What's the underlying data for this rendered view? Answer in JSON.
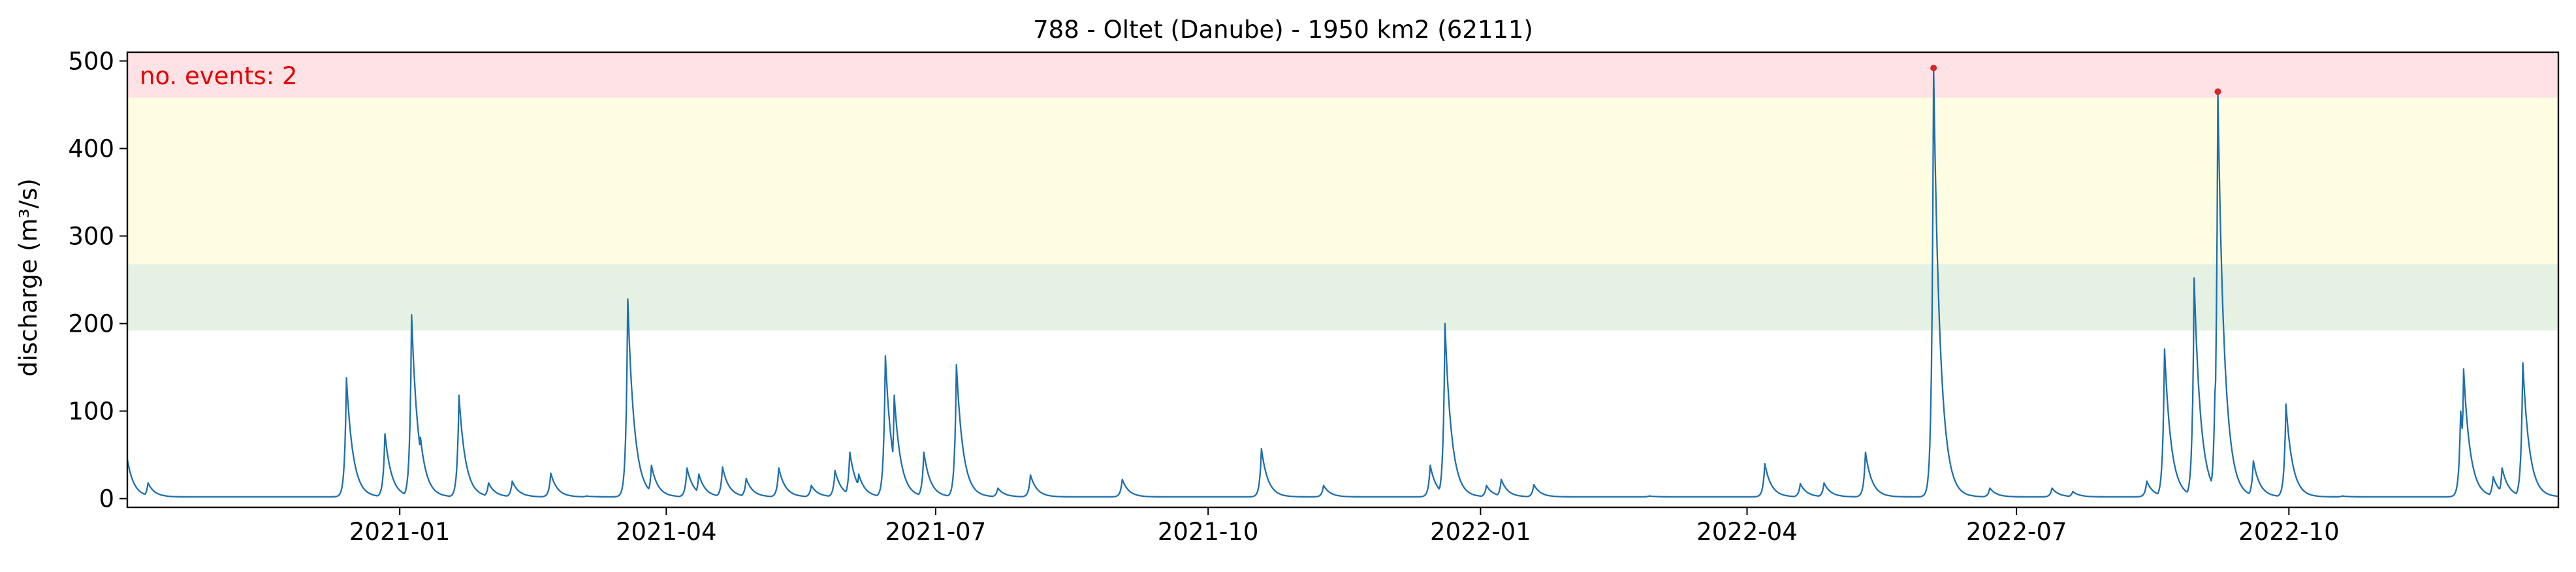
{
  "chart_data": {
    "type": "line",
    "title": "788 - Oltet (Danube) - 1950 km2 (62111)",
    "xlabel": "",
    "ylabel": "discharge (m³/s)",
    "xlim": [
      "2020-10-01",
      "2022-12-31"
    ],
    "ylim": [
      -10,
      510
    ],
    "x_ticks": [
      {
        "date": "2021-01-01",
        "label": "2021-01"
      },
      {
        "date": "2021-04-01",
        "label": "2021-04"
      },
      {
        "date": "2021-07-01",
        "label": "2021-07"
      },
      {
        "date": "2021-10-01",
        "label": "2021-10"
      },
      {
        "date": "2022-01-01",
        "label": "2022-01"
      },
      {
        "date": "2022-04-01",
        "label": "2022-04"
      },
      {
        "date": "2022-07-01",
        "label": "2022-07"
      },
      {
        "date": "2022-10-01",
        "label": "2022-10"
      }
    ],
    "y_ticks": [
      0,
      100,
      200,
      300,
      400,
      500
    ],
    "grid": false,
    "threshold_bands": [
      {
        "from": 192,
        "to": 268,
        "color": "#e5f1e3"
      },
      {
        "from": 268,
        "to": 458,
        "color": "#fffde1"
      },
      {
        "from": 458,
        "to": 510,
        "color": "#fee2e5"
      }
    ],
    "annotation": {
      "text": "no. events: 2",
      "color": "#e60000",
      "position": "top-left"
    },
    "series": [
      {
        "color": "#1f6fad",
        "peaks": [
          [
            "2020-10-01",
            45
          ],
          [
            "2020-10-08",
            18
          ],
          [
            "2020-12-14",
            138
          ],
          [
            "2020-12-27",
            74
          ],
          [
            "2021-01-05",
            210
          ],
          [
            "2021-01-08",
            70
          ],
          [
            "2021-01-21",
            118
          ],
          [
            "2021-01-31",
            18
          ],
          [
            "2021-02-08",
            20
          ],
          [
            "2021-02-21",
            29
          ],
          [
            "2021-03-05",
            3
          ],
          [
            "2021-03-19",
            228
          ],
          [
            "2021-03-21",
            72
          ],
          [
            "2021-03-27",
            38
          ],
          [
            "2021-04-08",
            35
          ],
          [
            "2021-04-12",
            28
          ],
          [
            "2021-04-20",
            36
          ],
          [
            "2021-04-28",
            23
          ],
          [
            "2021-05-09",
            35
          ],
          [
            "2021-05-20",
            15
          ],
          [
            "2021-05-28",
            32
          ],
          [
            "2021-06-02",
            53
          ],
          [
            "2021-06-05",
            28
          ],
          [
            "2021-06-14",
            163
          ],
          [
            "2021-06-17",
            118
          ],
          [
            "2021-06-27",
            53
          ],
          [
            "2021-07-08",
            153
          ],
          [
            "2021-07-22",
            12
          ],
          [
            "2021-08-02",
            27
          ],
          [
            "2021-09-02",
            22
          ],
          [
            "2021-10-19",
            57
          ],
          [
            "2021-11-09",
            15
          ],
          [
            "2021-12-15",
            38
          ],
          [
            "2021-12-20",
            200
          ],
          [
            "2022-01-03",
            15
          ],
          [
            "2022-01-08",
            22
          ],
          [
            "2022-01-19",
            16
          ],
          [
            "2022-02-27",
            3
          ],
          [
            "2022-04-07",
            40
          ],
          [
            "2022-04-19",
            17
          ],
          [
            "2022-04-27",
            18
          ],
          [
            "2022-05-11",
            53
          ],
          [
            "2022-06-03",
            492
          ],
          [
            "2022-06-10",
            22
          ],
          [
            "2022-06-22",
            12
          ],
          [
            "2022-07-13",
            12
          ],
          [
            "2022-07-20",
            8
          ],
          [
            "2022-08-14",
            20
          ],
          [
            "2022-08-20",
            171
          ],
          [
            "2022-08-30",
            252
          ],
          [
            "2022-09-01",
            85
          ],
          [
            "2022-09-06",
            120
          ],
          [
            "2022-09-07",
            465
          ],
          [
            "2022-09-19",
            43
          ],
          [
            "2022-09-30",
            108
          ],
          [
            "2022-10-19",
            3
          ],
          [
            "2022-11-28",
            100
          ],
          [
            "2022-11-29",
            148
          ],
          [
            "2022-12-09",
            25
          ],
          [
            "2022-12-12",
            35
          ],
          [
            "2022-12-19",
            155
          ],
          [
            "2022-12-31",
            3
          ]
        ]
      }
    ],
    "events": [
      {
        "date": "2022-06-03",
        "value": 492,
        "color": "#d62728"
      },
      {
        "date": "2022-09-07",
        "value": 465,
        "color": "#d62728"
      }
    ]
  }
}
